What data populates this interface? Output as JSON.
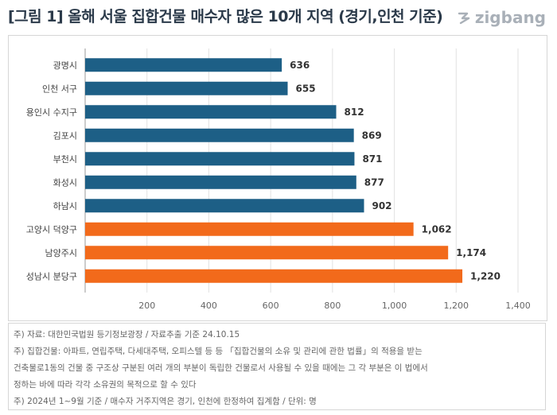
{
  "title": "[그림 1] 올해 서울 집합건물 매수자 많은 10개 지역 (경기,인천 기준)",
  "logo": {
    "text": "zigbang",
    "icon": "zigbang-logo-icon"
  },
  "colors": {
    "primary": "#1d5f86",
    "highlight": "#f26a1b",
    "grid": "#e2e2e2"
  },
  "chart_data": {
    "type": "bar",
    "orientation": "horizontal",
    "categories": [
      "광명시",
      "인천 서구",
      "용인시 수지구",
      "김포시",
      "부천시",
      "화성시",
      "하남시",
      "고양시 덕양구",
      "남양주시",
      "성남시 분당구"
    ],
    "values": [
      636,
      655,
      812,
      869,
      871,
      877,
      902,
      1062,
      1174,
      1220
    ],
    "value_labels": [
      "636",
      "655",
      "812",
      "869",
      "871",
      "877",
      "902",
      "1,062",
      "1,174",
      "1,220"
    ],
    "highlighted": [
      false,
      false,
      false,
      false,
      false,
      false,
      false,
      true,
      true,
      true
    ],
    "xlim": [
      0,
      1400
    ],
    "xticks": [
      0,
      200,
      400,
      600,
      800,
      1000,
      1200,
      1400
    ],
    "xtick_labels": [
      "",
      "200",
      "400",
      "600",
      "800",
      "1,000",
      "1,200",
      "1,400"
    ],
    "grid": true,
    "legend": "none"
  },
  "notes": [
    "주) 자료: 대한민국법원 등기정보광장 / 자료추출 기준 24.10.15",
    "주) 집합건물: 아파트, 연립주택, 다세대주택, 오피스텔 등 등 「집합건물의 소유 및 관리에 관한 법률」의 적용을 받는",
    "건축물로1동의 건물 중 구조상 구분된 여러 개의 부분이 독립한 건물로서 사용될 수 있을 때에는 그 각 부분은 이 법에서",
    "정하는 바에 따라 각각 소유권의 목적으로 할 수 있다",
    "주) 2024년 1~9월 기준 / 매수자 거주지역은 경기, 인천에 한정하여 집계함 / 단위: 명"
  ]
}
